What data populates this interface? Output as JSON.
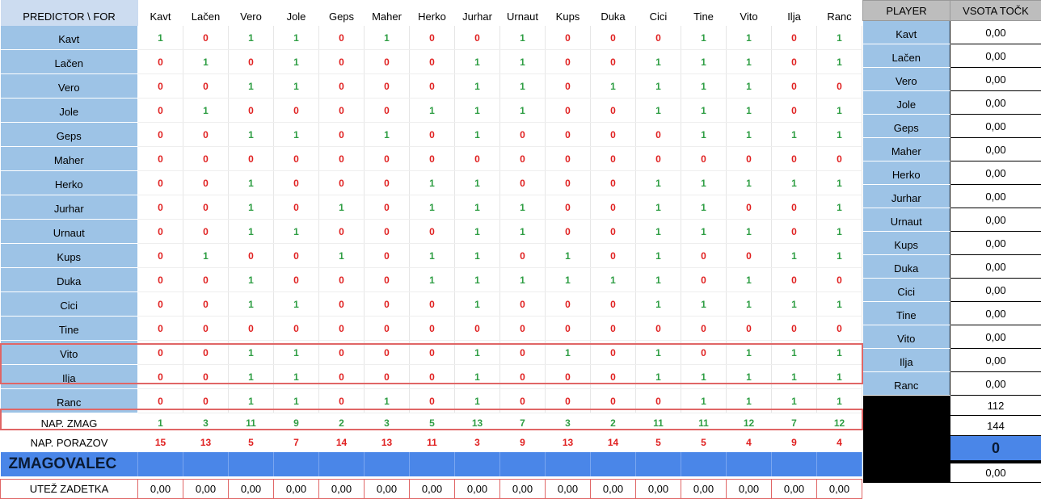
{
  "corner_label": "PREDICTOR \\ FOR",
  "columns": [
    "Kavt",
    "Lačen",
    "Vero",
    "Jole",
    "Geps",
    "Maher",
    "Herko",
    "Jurhar",
    "Urnaut",
    "Kups",
    "Duka",
    "Cici",
    "Tine",
    "Vito",
    "Ilja",
    "Ranc"
  ],
  "rows": [
    {
      "name": "Kavt",
      "values": [
        1,
        0,
        1,
        1,
        0,
        1,
        0,
        0,
        1,
        0,
        0,
        0,
        1,
        1,
        0,
        1
      ]
    },
    {
      "name": "Lačen",
      "values": [
        0,
        1,
        0,
        1,
        0,
        0,
        0,
        1,
        1,
        0,
        0,
        1,
        1,
        1,
        0,
        1
      ]
    },
    {
      "name": "Vero",
      "values": [
        0,
        0,
        1,
        1,
        0,
        0,
        0,
        1,
        1,
        0,
        1,
        1,
        1,
        1,
        0,
        0
      ]
    },
    {
      "name": "Jole",
      "values": [
        0,
        1,
        0,
        0,
        0,
        0,
        1,
        1,
        1,
        0,
        0,
        1,
        1,
        1,
        0,
        1
      ]
    },
    {
      "name": "Geps",
      "values": [
        0,
        0,
        1,
        1,
        0,
        1,
        0,
        1,
        0,
        0,
        0,
        0,
        1,
        1,
        1,
        1
      ]
    },
    {
      "name": "Maher",
      "values": [
        0,
        0,
        0,
        0,
        0,
        0,
        0,
        0,
        0,
        0,
        0,
        0,
        0,
        0,
        0,
        0
      ]
    },
    {
      "name": "Herko",
      "values": [
        0,
        0,
        1,
        0,
        0,
        0,
        1,
        1,
        0,
        0,
        0,
        1,
        1,
        1,
        1,
        1
      ]
    },
    {
      "name": "Jurhar",
      "values": [
        0,
        0,
        1,
        0,
        1,
        0,
        1,
        1,
        1,
        0,
        0,
        1,
        1,
        0,
        0,
        1
      ]
    },
    {
      "name": "Urnaut",
      "values": [
        0,
        0,
        1,
        1,
        0,
        0,
        0,
        1,
        1,
        0,
        0,
        1,
        1,
        1,
        0,
        1
      ]
    },
    {
      "name": "Kups",
      "values": [
        0,
        1,
        0,
        0,
        1,
        0,
        1,
        1,
        0,
        1,
        0,
        1,
        0,
        0,
        1,
        1
      ]
    },
    {
      "name": "Duka",
      "values": [
        0,
        0,
        1,
        0,
        0,
        0,
        1,
        1,
        1,
        1,
        1,
        1,
        0,
        1,
        0,
        0
      ]
    },
    {
      "name": "Cici",
      "values": [
        0,
        0,
        1,
        1,
        0,
        0,
        0,
        1,
        0,
        0,
        0,
        1,
        1,
        1,
        1,
        1
      ]
    },
    {
      "name": "Tine",
      "values": [
        0,
        0,
        0,
        0,
        0,
        0,
        0,
        0,
        0,
        0,
        0,
        0,
        0,
        0,
        0,
        0
      ]
    },
    {
      "name": "Vito",
      "values": [
        0,
        0,
        1,
        1,
        0,
        0,
        0,
        1,
        0,
        1,
        0,
        1,
        0,
        1,
        1,
        1
      ]
    },
    {
      "name": "Ilja",
      "values": [
        0,
        0,
        1,
        1,
        0,
        0,
        0,
        1,
        0,
        0,
        0,
        1,
        1,
        1,
        1,
        1
      ]
    },
    {
      "name": "Ranc",
      "values": [
        0,
        0,
        1,
        1,
        0,
        1,
        0,
        1,
        0,
        0,
        0,
        0,
        1,
        1,
        1,
        1
      ]
    }
  ],
  "summary": {
    "wins_label": "NAP. ZMAG",
    "wins": [
      1,
      3,
      11,
      9,
      2,
      3,
      5,
      13,
      7,
      3,
      2,
      11,
      11,
      12,
      7,
      12
    ],
    "losses_label": "NAP. PORAZOV",
    "losses": [
      15,
      13,
      5,
      7,
      14,
      13,
      11,
      3,
      9,
      13,
      14,
      5,
      5,
      4,
      9,
      4
    ],
    "winner_label": "ZMAGOVALEC",
    "weight_label": "UTEŽ ZADETKA",
    "weights": [
      "0,00",
      "0,00",
      "0,00",
      "0,00",
      "0,00",
      "0,00",
      "0,00",
      "0,00",
      "0,00",
      "0,00",
      "0,00",
      "0,00",
      "0,00",
      "0,00",
      "0,00",
      "0,00"
    ]
  },
  "side": {
    "player_header": "PLAYER",
    "score_header": "VSOTA TOČK",
    "players": [
      {
        "name": "Kavt",
        "score": "0,00"
      },
      {
        "name": "Lačen",
        "score": "0,00"
      },
      {
        "name": "Vero",
        "score": "0,00"
      },
      {
        "name": "Jole",
        "score": "0,00"
      },
      {
        "name": "Geps",
        "score": "0,00"
      },
      {
        "name": "Maher",
        "score": "0,00"
      },
      {
        "name": "Herko",
        "score": "0,00"
      },
      {
        "name": "Jurhar",
        "score": "0,00"
      },
      {
        "name": "Urnaut",
        "score": "0,00"
      },
      {
        "name": "Kups",
        "score": "0,00"
      },
      {
        "name": "Duka",
        "score": "0,00"
      },
      {
        "name": "Cici",
        "score": "0,00"
      },
      {
        "name": "Tine",
        "score": "0,00"
      },
      {
        "name": "Vito",
        "score": "0,00"
      },
      {
        "name": "Ilja",
        "score": "0,00"
      },
      {
        "name": "Ranc",
        "score": "0,00"
      }
    ],
    "total_wins": "112",
    "total_losses": "144",
    "winner_value": "0",
    "weight_value": "0,00"
  },
  "colors": {
    "win": "#2f9e44",
    "loss": "#e02020",
    "name_cell": "#9dc3e6",
    "winner_bar": "#4a86e8",
    "frame": "#e06666"
  }
}
